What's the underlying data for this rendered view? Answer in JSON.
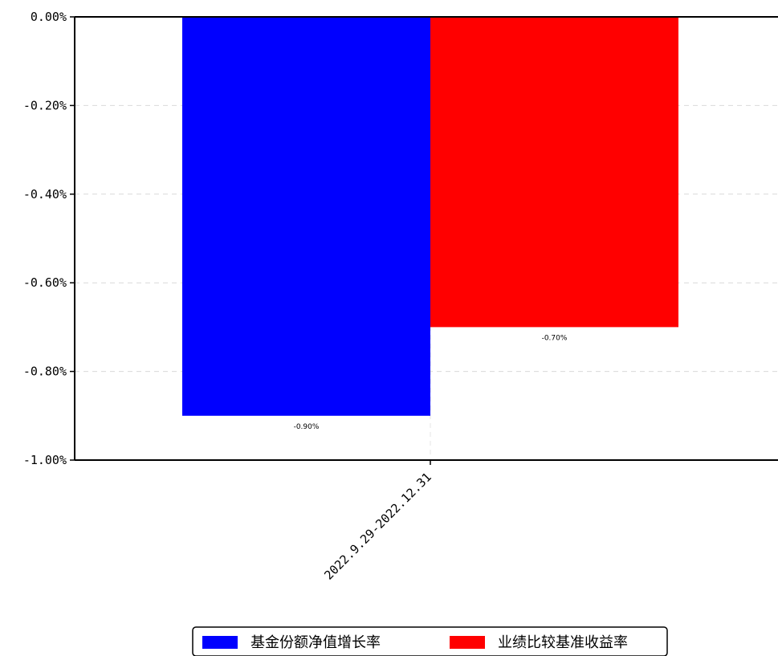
{
  "chart_data": {
    "type": "bar",
    "categories": [
      "2022.9.29-2022.12.31"
    ],
    "series": [
      {
        "name": "基金份额净值增长率",
        "values": [
          -0.9
        ],
        "color": "#0000ff",
        "value_label": "-0.90%"
      },
      {
        "name": "业绩比较基准收益率",
        "values": [
          -0.7
        ],
        "color": "#ff0000",
        "value_label": "-0.70%"
      }
    ],
    "yticks": [
      0.0,
      -0.2,
      -0.4,
      -0.6,
      -0.8,
      -1.0
    ],
    "ytick_labels": [
      "0.00%",
      "-0.20%",
      "-0.40%",
      "-0.60%",
      "-0.80%",
      "-1.00%"
    ],
    "ylim": [
      -1.0,
      0.0
    ],
    "xlabel": "",
    "ylabel": "",
    "title": "",
    "grid": true,
    "legend_position": "bottom-center",
    "x_tick_rotation": 45
  }
}
